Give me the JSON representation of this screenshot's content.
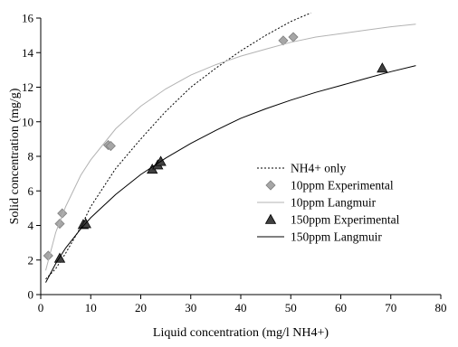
{
  "chart_data": {
    "type": "scatter",
    "title": "",
    "xlabel": "Liquid concentration (mg/l NH4+)",
    "ylabel": "Solid concentration (mg/g)",
    "xlim": [
      0,
      80
    ],
    "ylim": [
      0,
      16
    ],
    "x_ticks": [
      "0",
      "10",
      "20",
      "30",
      "40",
      "50",
      "60",
      "70",
      "80"
    ],
    "y_ticks": [
      "0",
      "2",
      "4",
      "6",
      "8",
      "10",
      "12",
      "14",
      "16"
    ],
    "grid": false,
    "legend_position": "center-right",
    "series": [
      {
        "name": "NH4+ only",
        "kind": "line",
        "style": "dotted",
        "color": "#000000",
        "x": [
          1,
          3,
          5,
          8,
          10,
          15,
          20,
          25,
          30,
          35,
          40,
          45,
          50,
          54
        ],
        "y": [
          0.9,
          1.5,
          2.4,
          3.9,
          5.1,
          7.3,
          9.0,
          10.6,
          12.0,
          13.1,
          14.1,
          15.0,
          15.8,
          16.3
        ]
      },
      {
        "name": "10ppm Experimental",
        "kind": "markers",
        "marker": "diamond",
        "color": "#a6a6a6",
        "x": [
          1.5,
          3.8,
          4.3,
          13.5,
          14.0,
          48.5,
          50.5
        ],
        "y": [
          2.25,
          4.1,
          4.7,
          8.65,
          8.6,
          14.7,
          14.9
        ]
      },
      {
        "name": "10ppm Langmuir",
        "kind": "line",
        "style": "solid",
        "color": "#b3b3b3",
        "x": [
          1,
          3,
          5,
          8,
          10,
          15,
          20,
          25,
          30,
          35,
          40,
          45,
          50,
          55,
          60,
          65,
          70,
          75
        ],
        "y": [
          1.4,
          3.6,
          5.1,
          6.9,
          7.8,
          9.6,
          10.9,
          11.9,
          12.7,
          13.3,
          13.8,
          14.2,
          14.6,
          14.9,
          15.1,
          15.3,
          15.5,
          15.65
        ]
      },
      {
        "name": "150ppm Experimental",
        "kind": "markers",
        "marker": "triangle",
        "color": "#404040",
        "x": [
          3.8,
          8.5,
          9.0,
          22.3,
          23.4,
          24.0,
          68.3
        ],
        "y": [
          2.1,
          4.05,
          4.1,
          7.25,
          7.5,
          7.7,
          13.1
        ]
      },
      {
        "name": "150ppm Langmuir",
        "kind": "line",
        "style": "solid",
        "color": "#000000",
        "x": [
          1,
          3,
          5,
          8,
          10,
          15,
          20,
          25,
          30,
          35,
          40,
          45,
          50,
          55,
          60,
          65,
          70,
          75
        ],
        "y": [
          0.7,
          1.8,
          2.7,
          3.8,
          4.45,
          5.8,
          6.95,
          7.9,
          8.75,
          9.5,
          10.2,
          10.75,
          11.25,
          11.7,
          12.1,
          12.5,
          12.9,
          13.25
        ]
      }
    ]
  }
}
